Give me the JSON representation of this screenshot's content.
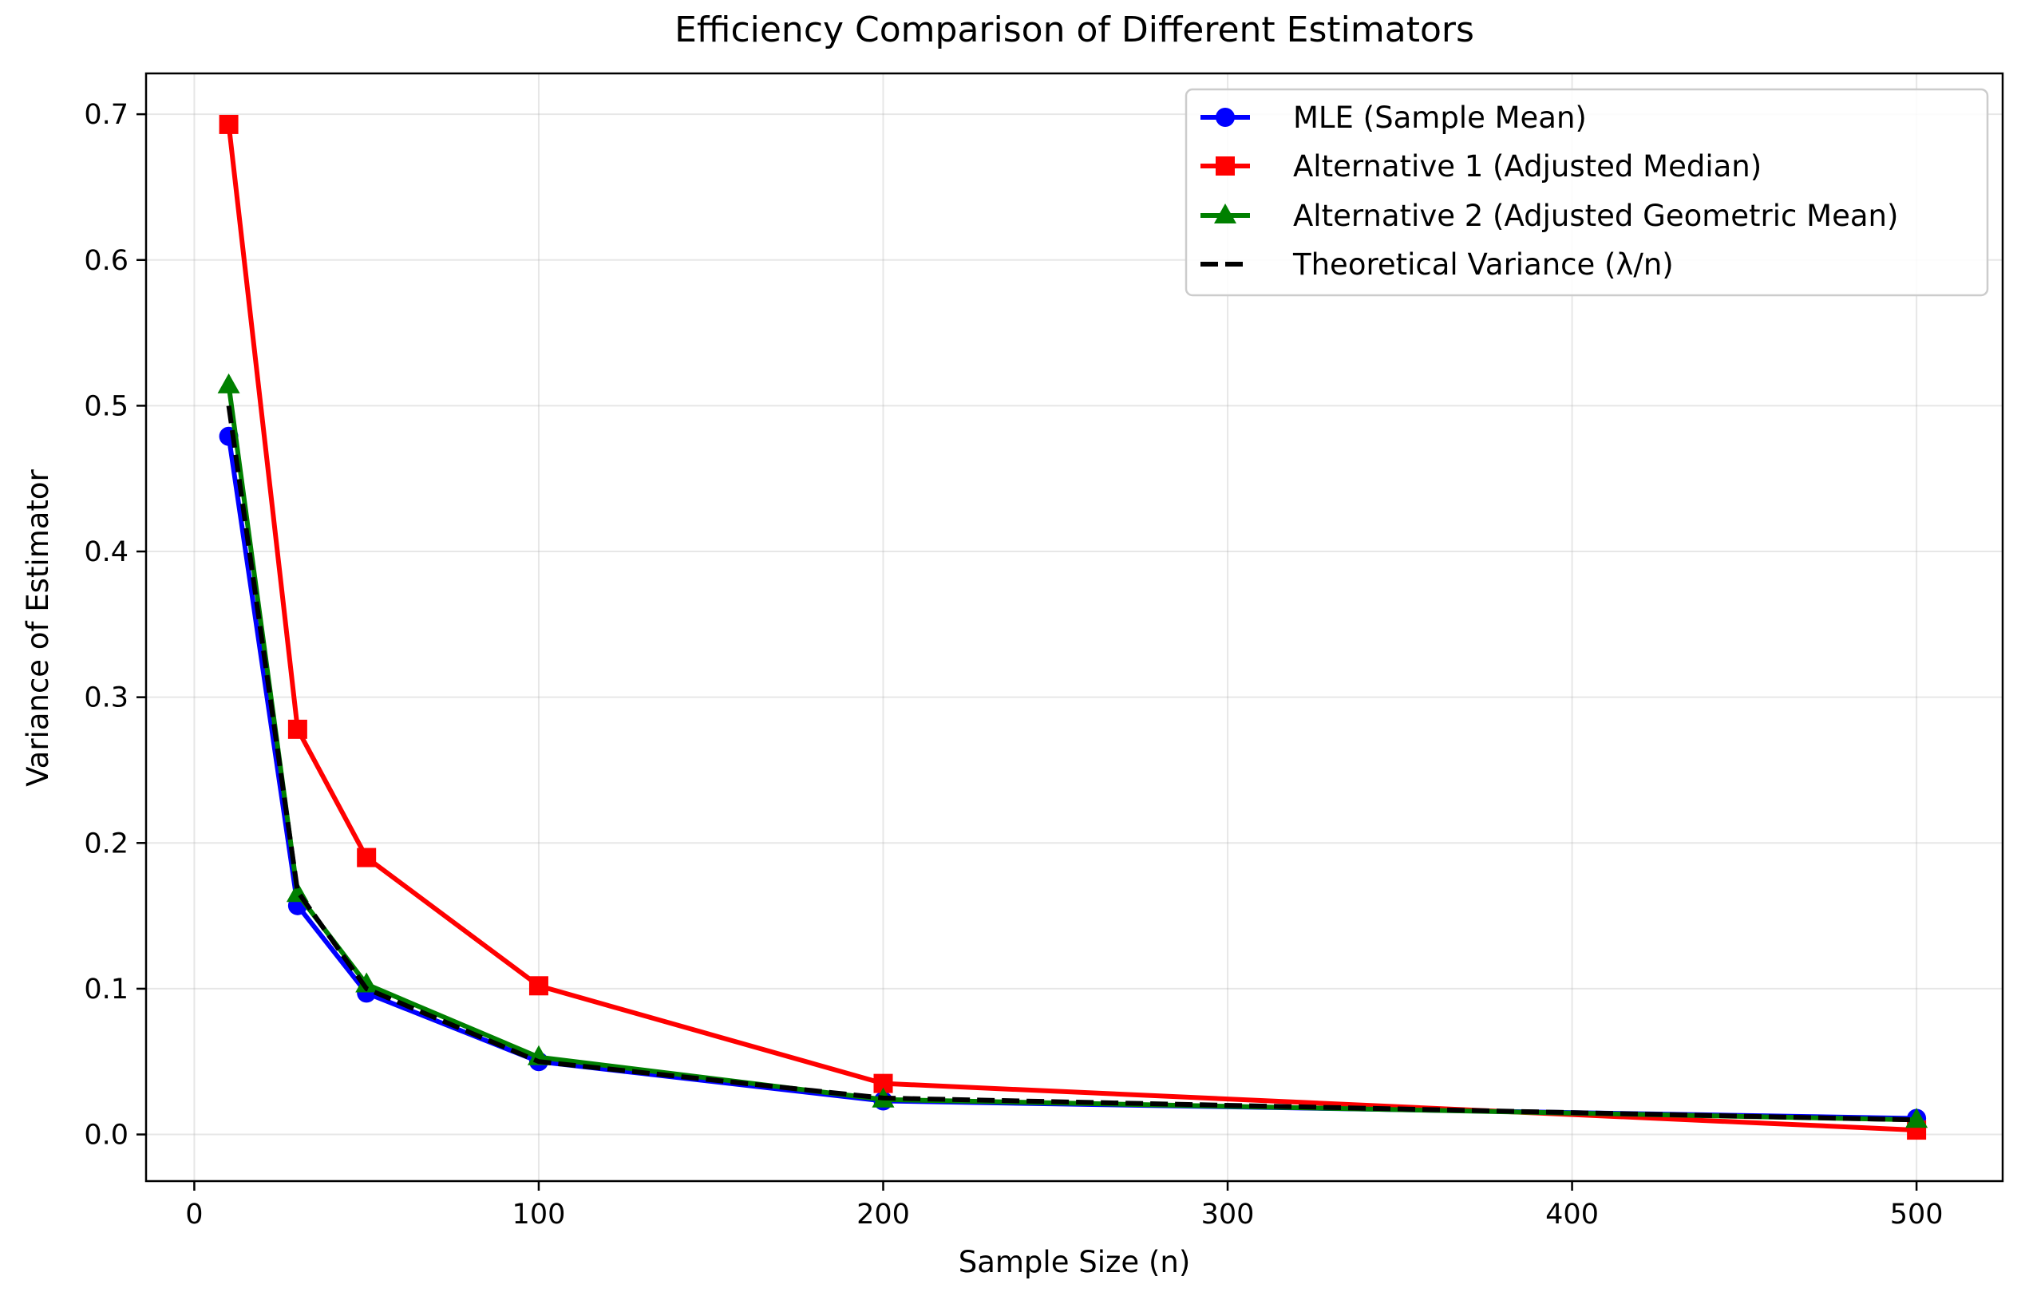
{
  "chart_data": {
    "type": "line",
    "title": "Efficiency Comparison of Different Estimators",
    "xlabel": "Sample Size (n)",
    "ylabel": "Variance of Estimator",
    "xlim": [
      -14,
      525
    ],
    "ylim": [
      -0.032,
      0.728
    ],
    "x_ticks": [
      0,
      100,
      200,
      300,
      400,
      500
    ],
    "x_tick_labels": [
      "0",
      "100",
      "200",
      "300",
      "400",
      "500"
    ],
    "y_ticks": [
      0.0,
      0.1,
      0.2,
      0.3,
      0.4,
      0.5,
      0.6,
      0.7
    ],
    "y_tick_labels": [
      "0.0",
      "0.1",
      "0.2",
      "0.3",
      "0.4",
      "0.5",
      "0.6",
      "0.7"
    ],
    "grid": true,
    "legend_position": "top-right",
    "x": [
      10,
      30,
      50,
      100,
      200,
      500
    ],
    "series": [
      {
        "name": "MLE (Sample Mean)",
        "values": [
          0.479,
          0.157,
          0.097,
          0.05,
          0.023,
          0.011
        ],
        "color": "#0000ff",
        "marker": "circle",
        "line_style": "solid"
      },
      {
        "name": "Alternative 1 (Adjusted Median)",
        "values": [
          0.693,
          0.278,
          0.19,
          0.102,
          0.035,
          0.003
        ],
        "color": "#ff0000",
        "marker": "square",
        "line_style": "solid"
      },
      {
        "name": "Alternative 2 (Adjusted Geometric Mean)",
        "values": [
          0.514,
          0.165,
          0.103,
          0.053,
          0.024,
          0.01
        ],
        "color": "#008000",
        "marker": "triangle",
        "line_style": "solid"
      },
      {
        "name": "Theoretical Variance (λ/n)",
        "values": [
          0.5,
          0.1667,
          0.1,
          0.05,
          0.025,
          0.01
        ],
        "color": "#000000",
        "marker": "none",
        "line_style": "dashed"
      }
    ]
  }
}
